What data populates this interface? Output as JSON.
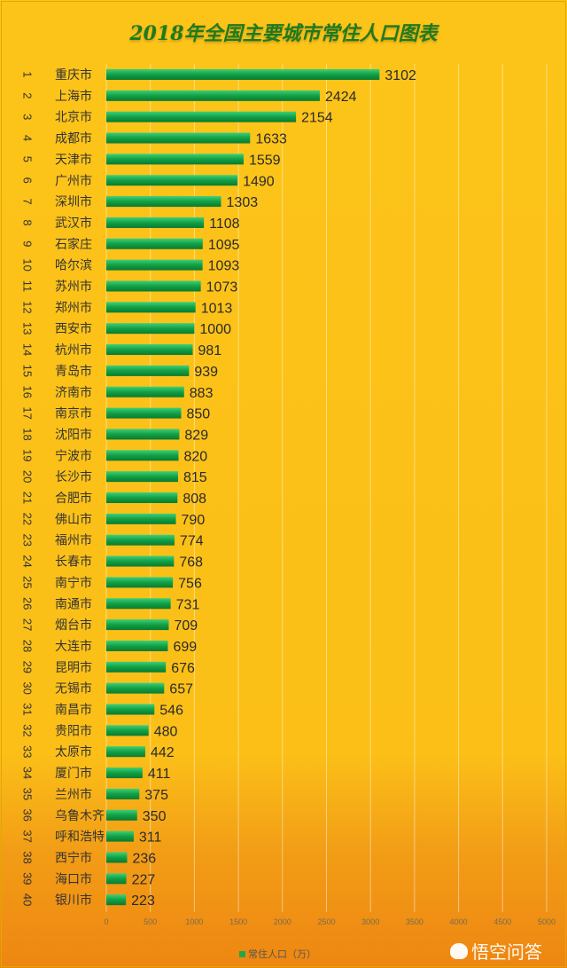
{
  "chart_data": {
    "type": "bar",
    "orientation": "horizontal",
    "title": "2018年全国主要城市常住人口图表",
    "ranks": [
      "1",
      "2",
      "3",
      "4",
      "5",
      "6",
      "7",
      "8",
      "9",
      "10",
      "11",
      "12",
      "13",
      "14",
      "15",
      "16",
      "17",
      "18",
      "19",
      "20",
      "21",
      "22",
      "23",
      "24",
      "25",
      "26",
      "27",
      "28",
      "29",
      "30",
      "31",
      "32",
      "33",
      "34",
      "35",
      "36",
      "37",
      "38",
      "39",
      "40"
    ],
    "categories": [
      "重庆市",
      "上海市",
      "北京市",
      "成都市",
      "天津市",
      "广州市",
      "深圳市",
      "武汉市",
      "石家庄",
      "哈尔滨",
      "苏州市",
      "郑州市",
      "西安市",
      "杭州市",
      "青岛市",
      "济南市",
      "南京市",
      "沈阳市",
      "宁波市",
      "长沙市",
      "合肥市",
      "佛山市",
      "福州市",
      "长春市",
      "南宁市",
      "南通市",
      "烟台市",
      "大连市",
      "昆明市",
      "无锡市",
      "南昌市",
      "贵阳市",
      "太原市",
      "厦门市",
      "兰州市",
      "乌鲁木齐",
      "呼和浩特",
      "西宁市",
      "海口市",
      "银川市"
    ],
    "series": [
      {
        "name": "常住人口（万）",
        "values": [
          3102,
          2424,
          2154,
          1633,
          1559,
          1490,
          1303,
          1108,
          1095,
          1093,
          1073,
          1013,
          1000,
          981,
          939,
          883,
          850,
          829,
          820,
          815,
          808,
          790,
          774,
          768,
          756,
          731,
          709,
          699,
          676,
          657,
          546,
          480,
          442,
          411,
          375,
          350,
          311,
          236,
          227,
          223
        ]
      }
    ],
    "xlim": [
      0,
      5000
    ],
    "xticks": [
      "0",
      "500",
      "1000",
      "1500",
      "2000",
      "2500",
      "3000",
      "3500",
      "4000",
      "4500",
      "5000"
    ],
    "grid": true,
    "legend": "bottom-center",
    "colors": {
      "bar": "#1fa84a",
      "background": "#fbbf18",
      "title": "#1f7a1f"
    }
  },
  "watermark": "悟空问答"
}
